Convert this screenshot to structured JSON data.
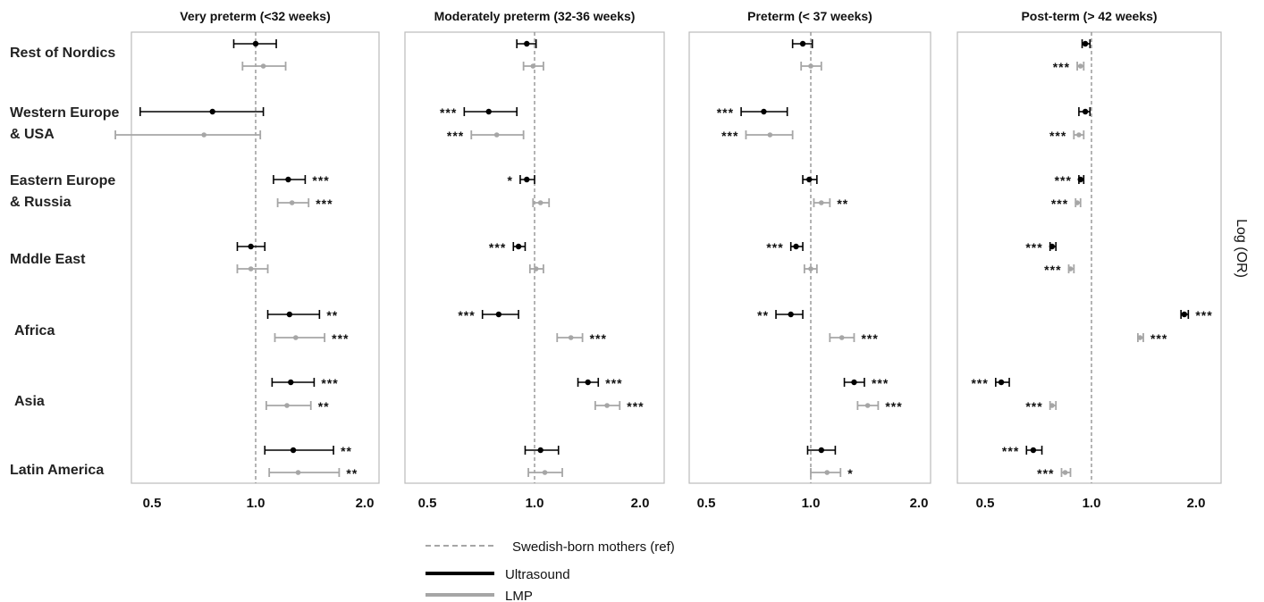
{
  "chart_data": {
    "type": "forest",
    "ylabel": "Log (OR)",
    "x_scale": "log",
    "reference_value": 1.0,
    "tick_labels": [
      "0.5",
      "1.0",
      "2.0"
    ],
    "row_labels": [
      [
        "Rest of Nordics"
      ],
      [
        "Western Europe",
        "& USA"
      ],
      [
        "Eastern Europe",
        "& Russia"
      ],
      [
        "Mddle East"
      ],
      [
        "Africa"
      ],
      [
        "Asia"
      ],
      [
        "Latin America"
      ]
    ],
    "legend": [
      {
        "label": "Swedish-born  mothers  (ref)",
        "style": "dashed",
        "color": "#888888"
      },
      {
        "label": "Ultrasound",
        "style": "solid",
        "color": "#000000"
      },
      {
        "label": "LMP",
        "style": "solid",
        "color": "#a6a6a6"
      }
    ],
    "colors": {
      "ultrasound": "#000000",
      "lmp": "#a6a6a6",
      "reference": "#8c8c8c",
      "frame": "#bbbbbb"
    },
    "panels": [
      {
        "title": "Very preterm (<32 weeks)",
        "xlim": [
          0.45,
          2.15
        ],
        "series": {
          "ultrasound": [
            {
              "or": 1.0,
              "lo": 0.87,
              "hi": 1.14,
              "sig": ""
            },
            {
              "or": 0.76,
              "lo": 0.48,
              "hi": 1.05,
              "sig": ""
            },
            {
              "or": 1.23,
              "lo": 1.12,
              "hi": 1.37,
              "sig": "***"
            },
            {
              "or": 0.97,
              "lo": 0.89,
              "hi": 1.06,
              "sig": ""
            },
            {
              "or": 1.24,
              "lo": 1.08,
              "hi": 1.5,
              "sig": "**"
            },
            {
              "or": 1.25,
              "lo": 1.11,
              "hi": 1.45,
              "sig": "***"
            },
            {
              "or": 1.27,
              "lo": 1.06,
              "hi": 1.64,
              "sig": "**"
            }
          ],
          "lmp": [
            {
              "or": 1.05,
              "lo": 0.92,
              "hi": 1.21,
              "sig": ""
            },
            {
              "or": 0.72,
              "lo": 0.41,
              "hi": 1.03,
              "sig": ""
            },
            {
              "or": 1.26,
              "lo": 1.15,
              "hi": 1.4,
              "sig": "***"
            },
            {
              "or": 0.97,
              "lo": 0.89,
              "hi": 1.08,
              "sig": ""
            },
            {
              "or": 1.29,
              "lo": 1.13,
              "hi": 1.55,
              "sig": "***"
            },
            {
              "or": 1.22,
              "lo": 1.07,
              "hi": 1.42,
              "sig": "**"
            },
            {
              "or": 1.31,
              "lo": 1.09,
              "hi": 1.7,
              "sig": "**"
            }
          ]
        }
      },
      {
        "title": "Moderately preterm (32-36 weeks)",
        "xlim": [
          0.45,
          2.15
        ],
        "series": {
          "ultrasound": [
            {
              "or": 0.95,
              "lo": 0.89,
              "hi": 1.01,
              "sig": ""
            },
            {
              "or": 0.74,
              "lo": 0.63,
              "hi": 0.89,
              "sig": "***"
            },
            {
              "or": 0.95,
              "lo": 0.91,
              "hi": 1.0,
              "sig": "*"
            },
            {
              "or": 0.9,
              "lo": 0.87,
              "hi": 0.94,
              "sig": "***"
            },
            {
              "or": 0.79,
              "lo": 0.71,
              "hi": 0.9,
              "sig": "***"
            },
            {
              "or": 1.42,
              "lo": 1.33,
              "hi": 1.52,
              "sig": "***"
            },
            {
              "or": 1.04,
              "lo": 0.94,
              "hi": 1.17,
              "sig": ""
            }
          ],
          "lmp": [
            {
              "or": 0.99,
              "lo": 0.93,
              "hi": 1.06,
              "sig": ""
            },
            {
              "or": 0.78,
              "lo": 0.66,
              "hi": 0.93,
              "sig": "***"
            },
            {
              "or": 1.04,
              "lo": 0.99,
              "hi": 1.1,
              "sig": ""
            },
            {
              "or": 1.01,
              "lo": 0.97,
              "hi": 1.06,
              "sig": ""
            },
            {
              "or": 1.27,
              "lo": 1.16,
              "hi": 1.37,
              "sig": "***"
            },
            {
              "or": 1.61,
              "lo": 1.49,
              "hi": 1.75,
              "sig": "***"
            },
            {
              "or": 1.07,
              "lo": 0.96,
              "hi": 1.2,
              "sig": ""
            }
          ]
        }
      },
      {
        "title": "Preterm (< 37 weeks)",
        "xlim": [
          0.45,
          2.15
        ],
        "series": {
          "ultrasound": [
            {
              "or": 0.95,
              "lo": 0.89,
              "hi": 1.01,
              "sig": ""
            },
            {
              "or": 0.74,
              "lo": 0.64,
              "hi": 0.86,
              "sig": "***"
            },
            {
              "or": 0.99,
              "lo": 0.95,
              "hi": 1.04,
              "sig": ""
            },
            {
              "or": 0.91,
              "lo": 0.88,
              "hi": 0.95,
              "sig": "***"
            },
            {
              "or": 0.88,
              "lo": 0.8,
              "hi": 0.95,
              "sig": "**"
            },
            {
              "or": 1.32,
              "lo": 1.24,
              "hi": 1.41,
              "sig": "***"
            },
            {
              "or": 1.07,
              "lo": 0.98,
              "hi": 1.17,
              "sig": ""
            }
          ],
          "lmp": [
            {
              "or": 1.0,
              "lo": 0.94,
              "hi": 1.07,
              "sig": ""
            },
            {
              "or": 0.77,
              "lo": 0.66,
              "hi": 0.89,
              "sig": "***"
            },
            {
              "or": 1.07,
              "lo": 1.02,
              "hi": 1.13,
              "sig": "**"
            },
            {
              "or": 1.0,
              "lo": 0.96,
              "hi": 1.04,
              "sig": ""
            },
            {
              "or": 1.22,
              "lo": 1.13,
              "hi": 1.32,
              "sig": "***"
            },
            {
              "or": 1.44,
              "lo": 1.35,
              "hi": 1.54,
              "sig": "***"
            },
            {
              "or": 1.11,
              "lo": 1.0,
              "hi": 1.21,
              "sig": "*"
            }
          ]
        }
      },
      {
        "title": "Post-term (> 42 weeks)",
        "xlim": [
          0.45,
          2.15
        ],
        "series": {
          "ultrasound": [
            {
              "or": 0.96,
              "lo": 0.94,
              "hi": 0.99,
              "sig": ""
            },
            {
              "or": 0.96,
              "lo": 0.92,
              "hi": 0.99,
              "sig": ""
            },
            {
              "or": 0.93,
              "lo": 0.92,
              "hi": 0.95,
              "sig": "***"
            },
            {
              "or": 0.77,
              "lo": 0.76,
              "hi": 0.79,
              "sig": "***"
            },
            {
              "or": 1.85,
              "lo": 1.81,
              "hi": 1.9,
              "sig": "***"
            },
            {
              "or": 0.55,
              "lo": 0.53,
              "hi": 0.58,
              "sig": "***"
            },
            {
              "or": 0.68,
              "lo": 0.65,
              "hi": 0.72,
              "sig": "***"
            }
          ],
          "lmp": [
            {
              "or": 0.93,
              "lo": 0.91,
              "hi": 0.95,
              "sig": "***"
            },
            {
              "or": 0.92,
              "lo": 0.89,
              "hi": 0.95,
              "sig": "***"
            },
            {
              "or": 0.91,
              "lo": 0.9,
              "hi": 0.93,
              "sig": "***"
            },
            {
              "or": 0.87,
              "lo": 0.86,
              "hi": 0.89,
              "sig": "***"
            },
            {
              "or": 1.38,
              "lo": 1.36,
              "hi": 1.41,
              "sig": "***"
            },
            {
              "or": 0.77,
              "lo": 0.76,
              "hi": 0.79,
              "sig": "***"
            },
            {
              "or": 0.84,
              "lo": 0.82,
              "hi": 0.87,
              "sig": "***"
            }
          ]
        }
      }
    ]
  }
}
